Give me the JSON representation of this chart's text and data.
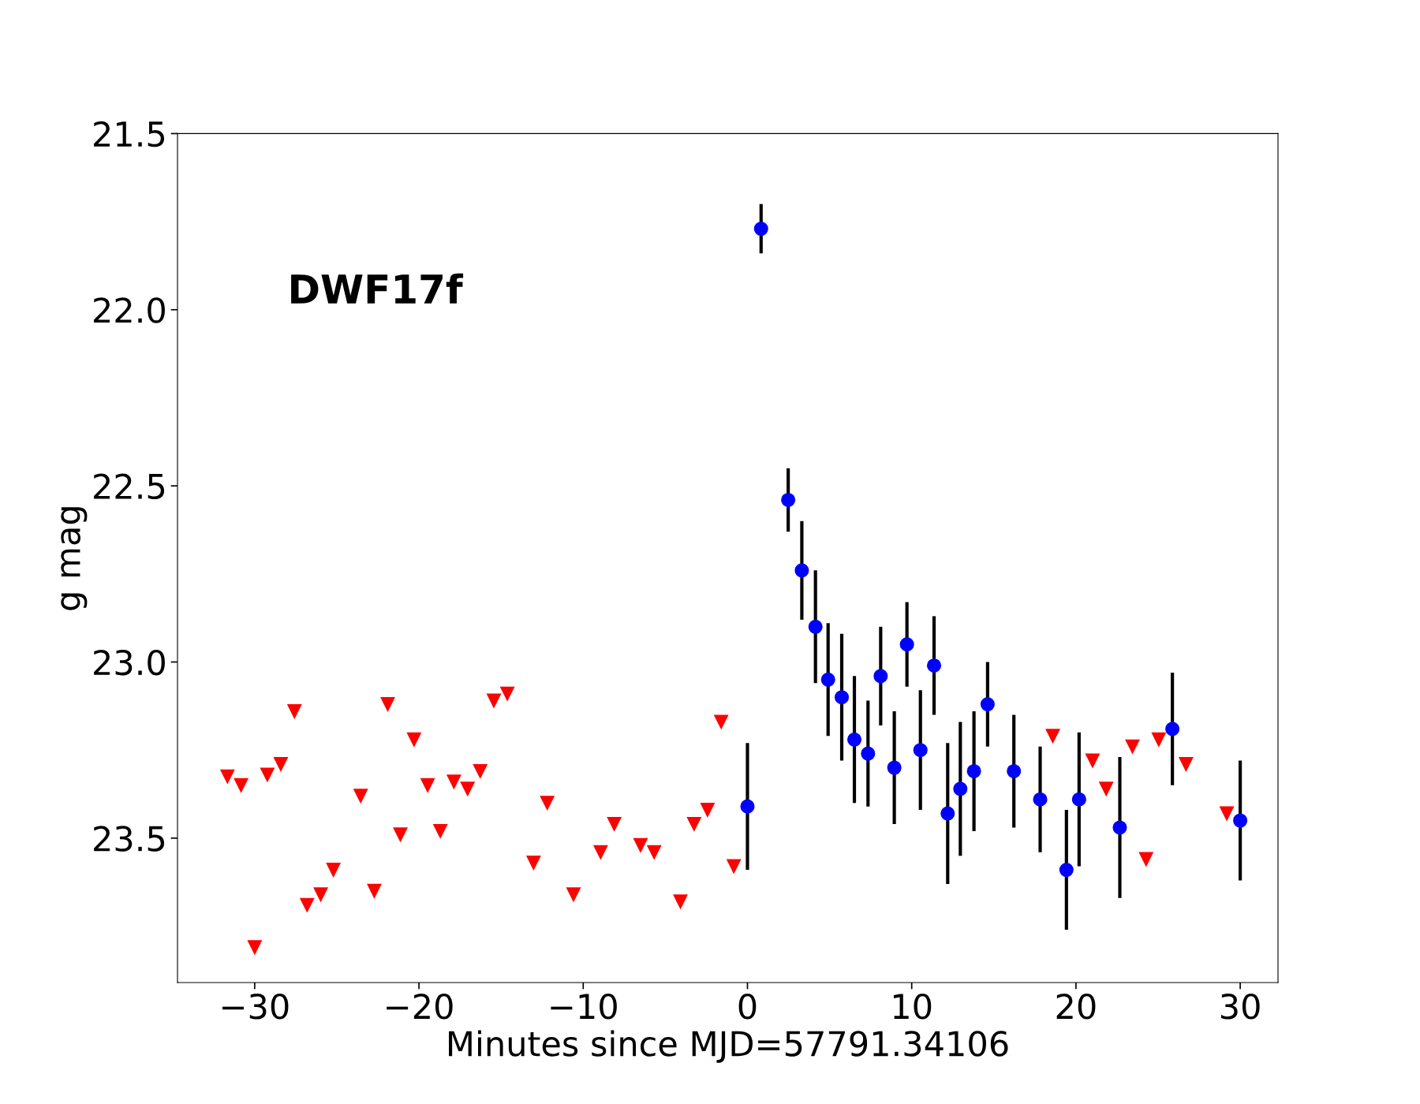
{
  "chart_data": {
    "type": "scatter",
    "xlabel": "Minutes since MJD=57791.34106",
    "ylabel": "g mag",
    "annotations": [
      "DWF17f"
    ],
    "xlim": [
      -34.7,
      32.3
    ],
    "ylim": [
      23.91,
      21.5
    ],
    "xticks": [
      {
        "value": -30,
        "label": "−30"
      },
      {
        "value": -20,
        "label": "−20"
      },
      {
        "value": -10,
        "label": "−10"
      },
      0,
      10,
      20,
      30
    ],
    "yticks": [
      21.5,
      {
        "value": 22,
        "label": "22.0"
      },
      22.5,
      {
        "value": 23,
        "label": "23.0"
      },
      23.5
    ],
    "grid": false,
    "series": [
      {
        "color": "#ff0000",
        "marker": "triangle",
        "x": [
          -31.66,
          -30.83,
          -30.0,
          -29.23,
          -28.41,
          -27.58,
          -26.81,
          -25.98,
          -25.21,
          -23.55,
          -22.72,
          -21.9,
          -21.13,
          -20.3,
          -19.47,
          -18.7,
          -17.87,
          -17.04,
          -16.27,
          -15.44,
          -14.62,
          -13.02,
          -12.19,
          -10.59,
          -8.94,
          -8.11,
          -6.51,
          -5.68,
          -4.08,
          -3.25,
          -2.43,
          -1.6,
          -0.83,
          18.59,
          21.01,
          21.84,
          23.44,
          24.27,
          25.04,
          26.7,
          29.18
        ],
        "values": [
          23.325,
          23.35,
          23.81,
          23.32,
          23.29,
          23.14,
          23.69,
          23.66,
          23.59,
          23.38,
          23.65,
          23.12,
          23.49,
          23.22,
          23.35,
          23.48,
          23.34,
          23.36,
          23.31,
          23.11,
          23.09,
          23.57,
          23.4,
          23.66,
          23.54,
          23.46,
          23.52,
          23.54,
          23.68,
          23.46,
          23.42,
          23.17,
          23.58,
          23.21,
          23.28,
          23.36,
          23.24,
          23.56,
          23.22,
          23.29,
          23.43
        ]
      },
      {
        "color": "#0000ff",
        "marker": "circle",
        "x": [
          0,
          0.83,
          2.48,
          3.31,
          4.14,
          4.91,
          5.74,
          6.51,
          7.34,
          8.11,
          8.94,
          9.71,
          10.53,
          11.36,
          12.19,
          12.96,
          13.79,
          14.62,
          16.22,
          17.82,
          19.42,
          20.19,
          22.67,
          25.87,
          30.0
        ],
        "values": [
          23.41,
          21.77,
          22.54,
          22.74,
          22.9,
          23.05,
          23.1,
          23.22,
          23.26,
          23.04,
          23.3,
          22.95,
          23.25,
          23.01,
          23.43,
          23.36,
          23.31,
          23.12,
          23.31,
          23.39,
          23.59,
          23.39,
          23.47,
          23.19,
          23.45
        ],
        "errors": [
          0.18,
          0.07,
          0.09,
          0.14,
          0.16,
          0.16,
          0.18,
          0.18,
          0.15,
          0.14,
          0.16,
          0.12,
          0.17,
          0.14,
          0.2,
          0.19,
          0.17,
          0.12,
          0.16,
          0.15,
          0.17,
          0.19,
          0.2,
          0.16,
          0.17
        ]
      }
    ]
  }
}
